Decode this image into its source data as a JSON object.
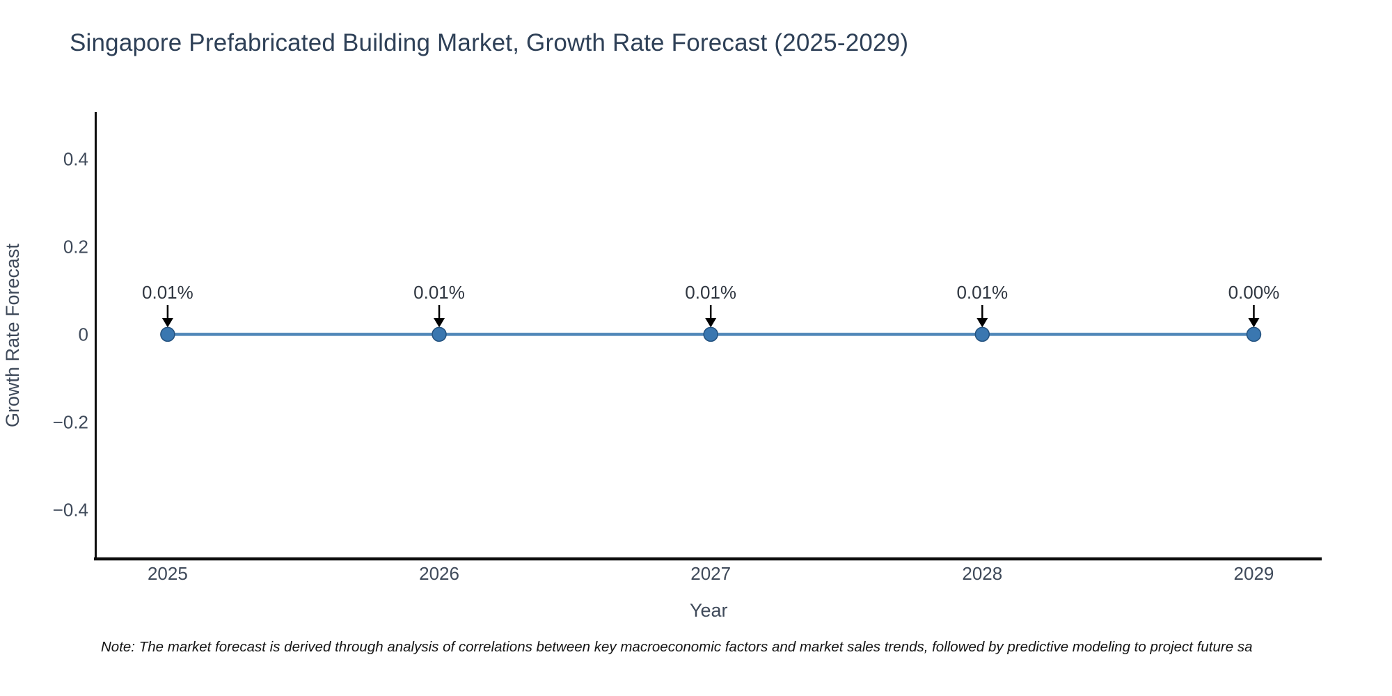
{
  "chart_data": {
    "type": "line",
    "title": "Singapore Prefabricated Building Market, Growth Rate Forecast (2025-2029)",
    "xlabel": "Year",
    "ylabel": "Growth Rate Forecast",
    "categories": [
      "2025",
      "2026",
      "2027",
      "2028",
      "2029"
    ],
    "x": [
      2025,
      2026,
      2027,
      2028,
      2029
    ],
    "values_percent": [
      0.01,
      0.01,
      0.01,
      0.01,
      0.0
    ],
    "values_plotted": [
      0.0001,
      0.0001,
      0.0001,
      0.0001,
      0.0
    ],
    "point_labels": [
      "0.01%",
      "0.01%",
      "0.01%",
      "0.01%",
      "0.00%"
    ],
    "yticks": [
      {
        "v": 0.4,
        "label": "0.4"
      },
      {
        "v": 0.2,
        "label": "0.2"
      },
      {
        "v": 0,
        "label": "0"
      },
      {
        "v": -0.2,
        "label": "−0.2"
      },
      {
        "v": -0.4,
        "label": "−0.4"
      }
    ],
    "ylim": [
      -0.512,
      0.507
    ],
    "xlim": [
      2024.735,
      2029.25
    ],
    "grid": false,
    "legend": "none",
    "marker": "circle",
    "annotation_arrows": true,
    "colors": {
      "line": "#4f86b8",
      "marker_fill": "#3a77b0",
      "marker_edge": "#24527f",
      "axis": "#0d0d0d",
      "tick_text": "#3f4a5a",
      "axis_label_text": "#3f4a5a",
      "title_text": "#2e4057",
      "annotation_text": "#2f3640",
      "arrow": "#000000",
      "background": "#ffffff"
    }
  },
  "note": {
    "text": "Note: The market forecast is derived through analysis of correlations between key macroeconomic factors and market sales trends, followed by predictive modeling to project future sa"
  }
}
